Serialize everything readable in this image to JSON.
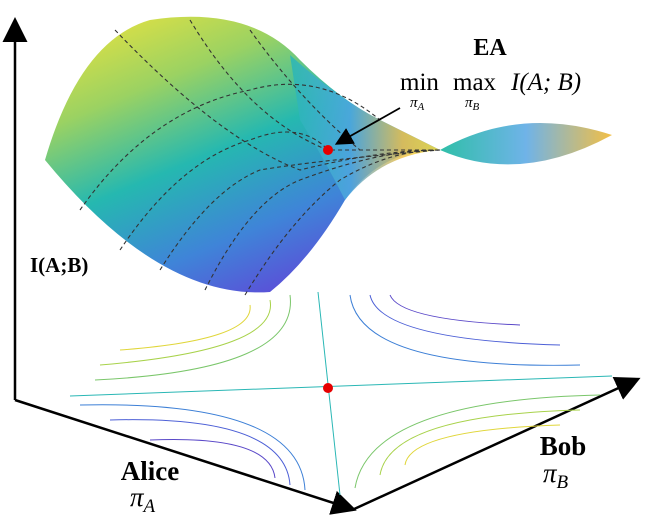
{
  "annotation": {
    "title": "EA",
    "op_min": "min",
    "op_max": "max",
    "expression": "I(A; B)",
    "min_sub_symbol": "π",
    "min_sub_index": "A",
    "max_sub_symbol": "π",
    "max_sub_index": "B"
  },
  "axes": {
    "z": {
      "label": "I(A;B)"
    },
    "x": {
      "name": "Alice",
      "symbol": "π",
      "index": "A"
    },
    "y": {
      "name": "Bob",
      "symbol": "π",
      "index": "B"
    }
  }
}
